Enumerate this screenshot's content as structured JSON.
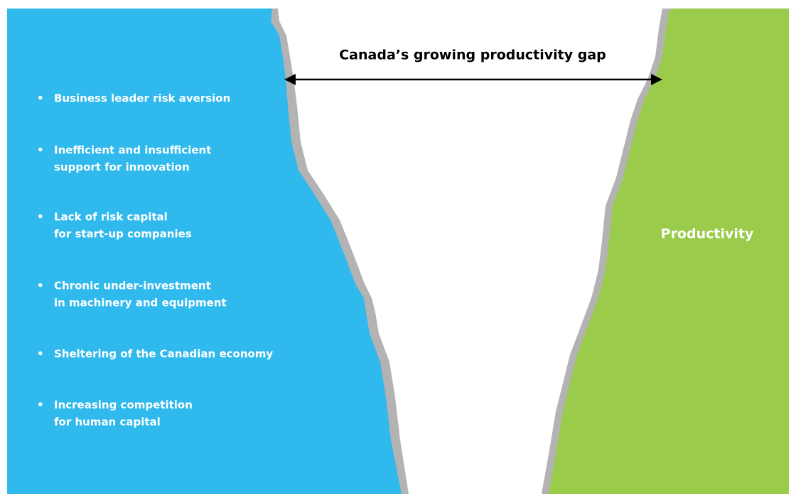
{
  "title": "Canada’s growing productivity gap",
  "factors": [
    {
      "lines": [
        "Business leader risk aversion"
      ]
    },
    {
      "lines": [
        "Inefficient and insufficient",
        "support for innovation"
      ]
    },
    {
      "lines": [
        "Lack of  risk capital",
        "for start-up companies"
      ]
    },
    {
      "lines": [
        "Chronic  under-investment",
        "in machinery and equipment"
      ]
    },
    {
      "lines": [
        "Sheltering of the Canadian economy"
      ]
    },
    {
      "lines": [
        "Increasing competition",
        "for human capital"
      ]
    }
  ],
  "outcome_label": "Productivity"
}
